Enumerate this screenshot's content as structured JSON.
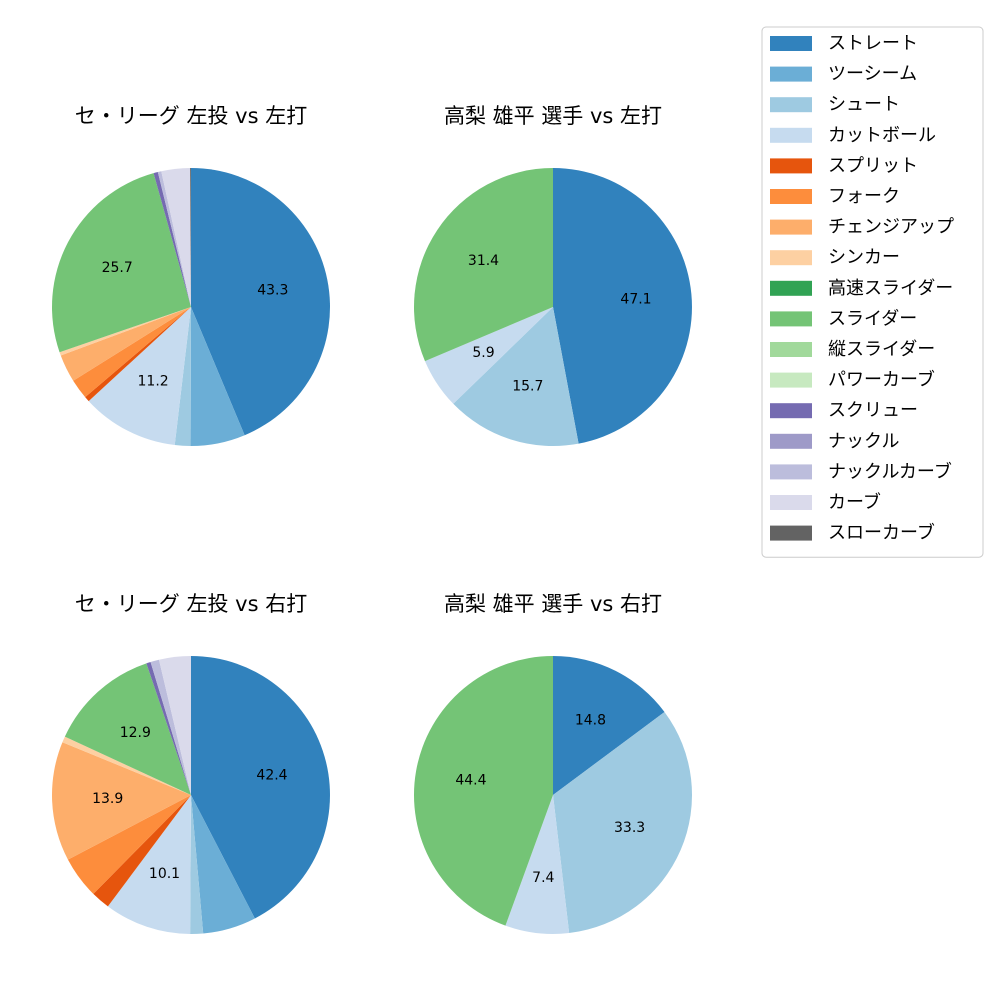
{
  "legend": {
    "items": [
      {
        "label": "ストレート",
        "color": "#3182bd"
      },
      {
        "label": "ツーシーム",
        "color": "#6baed6"
      },
      {
        "label": "シュート",
        "color": "#9ecae1"
      },
      {
        "label": "カットボール",
        "color": "#c6dbef"
      },
      {
        "label": "スプリット",
        "color": "#e6550d"
      },
      {
        "label": "フォーク",
        "color": "#fd8d3c"
      },
      {
        "label": "チェンジアップ",
        "color": "#fdae6b"
      },
      {
        "label": "シンカー",
        "color": "#fdd0a2"
      },
      {
        "label": "高速スライダー",
        "color": "#31a354"
      },
      {
        "label": "スライダー",
        "color": "#74c476"
      },
      {
        "label": "縦スライダー",
        "color": "#a1d99b"
      },
      {
        "label": "パワーカーブ",
        "color": "#c7e9c0"
      },
      {
        "label": "スクリュー",
        "color": "#756bb1"
      },
      {
        "label": "ナックル",
        "color": "#9e9ac8"
      },
      {
        "label": "ナックルカーブ",
        "color": "#bcbddc"
      },
      {
        "label": "カーブ",
        "color": "#dadaeb"
      },
      {
        "label": "スローカーブ",
        "color": "#636363"
      }
    ]
  },
  "chart_data": [
    {
      "type": "pie",
      "title": "セ・リーグ 左投 vs 左打",
      "slices": [
        {
          "label": "ストレート",
          "value": 43.3,
          "display": "43.3"
        },
        {
          "label": "ツーシーム",
          "value": 6.3,
          "display": ""
        },
        {
          "label": "シュート",
          "value": 1.8,
          "display": ""
        },
        {
          "label": "カットボール",
          "value": 11.2,
          "display": "11.2"
        },
        {
          "label": "スプリット",
          "value": 0.6,
          "display": ""
        },
        {
          "label": "フォーク",
          "value": 2.3,
          "display": ""
        },
        {
          "label": "チェンジアップ",
          "value": 3.2,
          "display": ""
        },
        {
          "label": "シンカー",
          "value": 0.4,
          "display": ""
        },
        {
          "label": "スライダー",
          "value": 25.7,
          "display": "25.7"
        },
        {
          "label": "スクリュー",
          "value": 0.5,
          "display": ""
        },
        {
          "label": "ナックルカーブ",
          "value": 0.4,
          "display": ""
        },
        {
          "label": "カーブ",
          "value": 3.3,
          "display": ""
        },
        {
          "label": "スローカーブ",
          "value": 0.1,
          "display": ""
        }
      ]
    },
    {
      "type": "pie",
      "title": "高梨 雄平 選手 vs 左打",
      "slices": [
        {
          "label": "ストレート",
          "value": 47.1,
          "display": "47.1"
        },
        {
          "label": "シュート",
          "value": 15.7,
          "display": "15.7"
        },
        {
          "label": "カットボール",
          "value": 5.9,
          "display": "5.9"
        },
        {
          "label": "スライダー",
          "value": 31.4,
          "display": "31.4"
        }
      ]
    },
    {
      "type": "pie",
      "title": "セ・リーグ 左投 vs 右打",
      "slices": [
        {
          "label": "ストレート",
          "value": 42.4,
          "display": "42.4"
        },
        {
          "label": "ツーシーム",
          "value": 6.2,
          "display": ""
        },
        {
          "label": "シュート",
          "value": 1.5,
          "display": ""
        },
        {
          "label": "カットボール",
          "value": 10.1,
          "display": "10.1"
        },
        {
          "label": "スプリット",
          "value": 2.2,
          "display": ""
        },
        {
          "label": "フォーク",
          "value": 4.9,
          "display": ""
        },
        {
          "label": "チェンジアップ",
          "value": 13.9,
          "display": "13.9"
        },
        {
          "label": "シンカー",
          "value": 0.7,
          "display": ""
        },
        {
          "label": "スライダー",
          "value": 12.9,
          "display": "12.9"
        },
        {
          "label": "スクリュー",
          "value": 0.5,
          "display": ""
        },
        {
          "label": "ナックルカーブ",
          "value": 1.0,
          "display": ""
        },
        {
          "label": "カーブ",
          "value": 3.7,
          "display": ""
        }
      ]
    },
    {
      "type": "pie",
      "title": "高梨 雄平 選手 vs 右打",
      "slices": [
        {
          "label": "ストレート",
          "value": 14.8,
          "display": "14.8"
        },
        {
          "label": "シュート",
          "value": 33.3,
          "display": "33.3"
        },
        {
          "label": "カットボール",
          "value": 7.4,
          "display": "7.4"
        },
        {
          "label": "スライダー",
          "value": 44.4,
          "display": "44.4"
        }
      ]
    }
  ]
}
